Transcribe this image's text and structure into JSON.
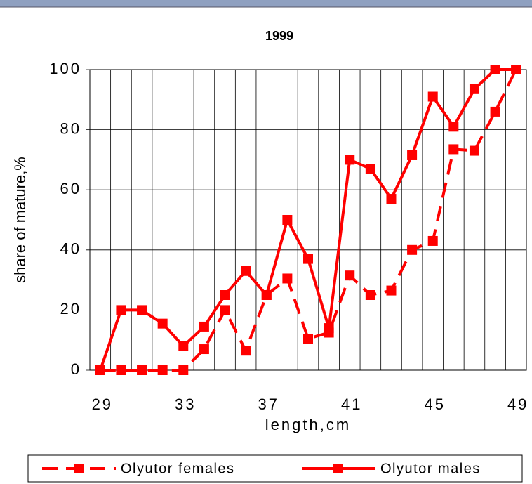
{
  "chart_data": {
    "type": "line",
    "title": "1999",
    "x_label": "length,cm",
    "y_label": "share of mature,%",
    "categories": [
      "29",
      null,
      null,
      null,
      "33",
      null,
      null,
      null,
      "37",
      null,
      null,
      null,
      "41",
      null,
      null,
      null,
      "45",
      null,
      null,
      null,
      "49"
    ],
    "series": [
      {
        "name": "Olyutor females",
        "color": "#ff0000",
        "dashed": true,
        "values": [
          0,
          0,
          0,
          0,
          0,
          7,
          20,
          6.5,
          25,
          30.5,
          10.5,
          12.5,
          31.5,
          25,
          26.5,
          40,
          43,
          73.5,
          73,
          86,
          100
        ]
      },
      {
        "name": "Olyutor males",
        "color": "#ff0000",
        "dashed": false,
        "values": [
          0,
          20,
          20,
          15.5,
          8,
          14.5,
          25,
          33,
          25,
          50,
          37,
          14,
          70,
          67,
          57,
          71.5,
          91,
          81,
          93.5,
          100,
          100
        ]
      }
    ],
    "ylim": [
      0,
      100
    ],
    "yticks": [
      0,
      20,
      40,
      60,
      80,
      100
    ],
    "grid": true,
    "legend": "bottom"
  }
}
